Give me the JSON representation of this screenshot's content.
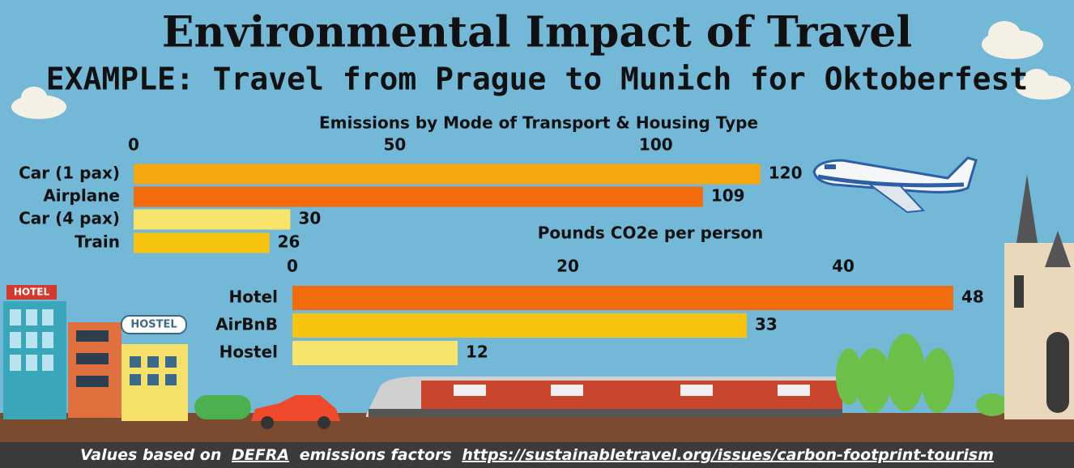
{
  "title": "Environmental Impact of Travel",
  "subtitle": "EXAMPLE: Travel from Prague to Munich for Oktoberfest",
  "chart_data": [
    {
      "type": "bar",
      "orientation": "horizontal",
      "title": "Emissions by Mode of Transport & Housing Type",
      "categories": [
        "Car (1 pax)",
        "Airplane",
        "Car (4 pax)",
        "Train"
      ],
      "values": [
        120,
        109,
        30,
        26
      ],
      "colors": [
        "#f7a80e",
        "#f26b0c",
        "#f8e36b",
        "#f8c30f"
      ],
      "xlim": [
        0,
        125
      ],
      "xticks": [
        0,
        50,
        100
      ]
    },
    {
      "type": "bar",
      "orientation": "horizontal",
      "xlabel": "Pounds CO2e per person",
      "categories": [
        "Hotel",
        "AirBnB",
        "Hostel"
      ],
      "values": [
        48,
        33,
        12
      ],
      "colors": [
        "#f26b0c",
        "#f8c30f",
        "#f8e36b"
      ],
      "xlim": [
        0,
        50
      ],
      "xticks": [
        0,
        20,
        40
      ]
    }
  ],
  "footer": {
    "prefix": "Values based on",
    "source": "DEFRA",
    "middle": "emissions factors",
    "url": "https://sustainabletravel.org/issues/carbon-footprint-tourism"
  }
}
